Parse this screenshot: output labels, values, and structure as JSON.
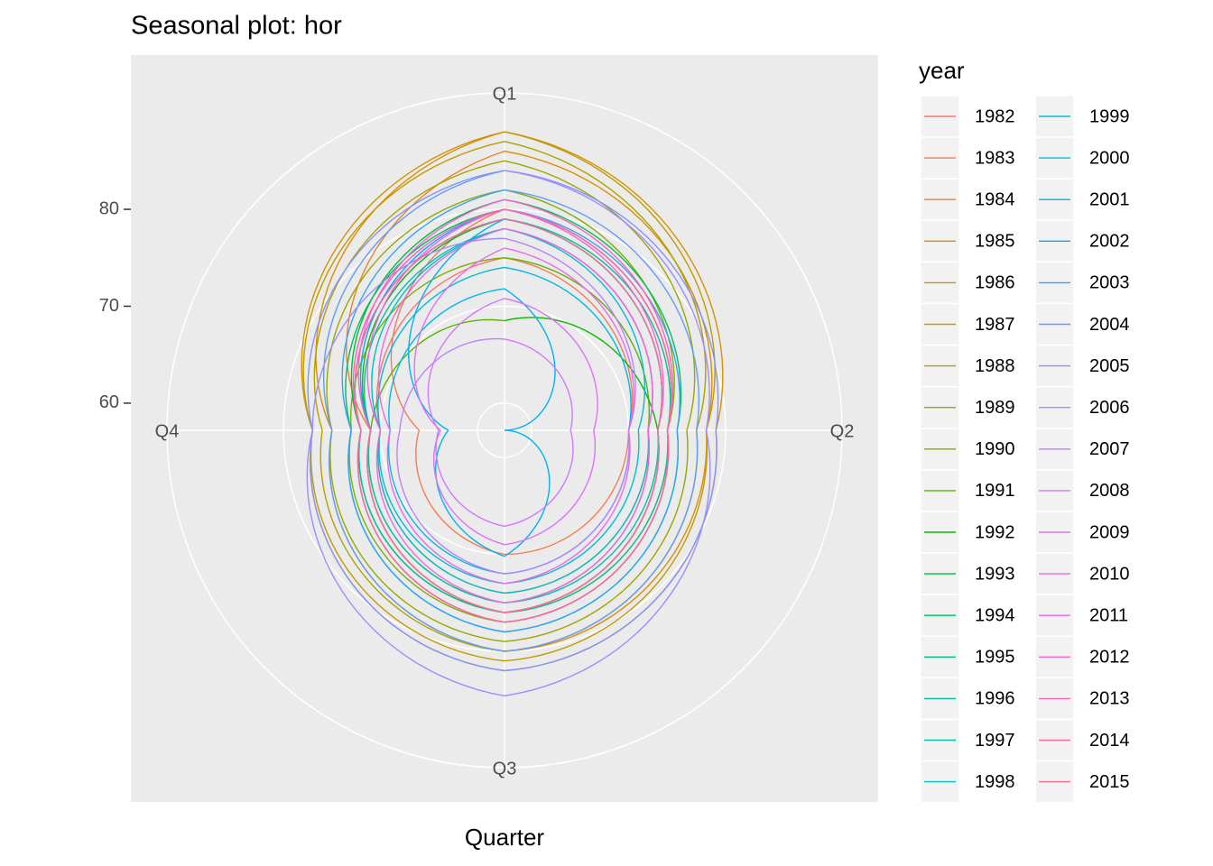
{
  "chart_data": {
    "type": "polar-line",
    "title": "Seasonal plot: hor",
    "x_title": "Quarter",
    "legend_title": "year",
    "categories": [
      "Q1",
      "Q2",
      "Q3",
      "Q4"
    ],
    "ylim": [
      57.2,
      88.1
    ],
    "yticks": [
      60,
      70,
      80
    ],
    "grid": true,
    "series": [
      {
        "name": "1982",
        "color": "#F8766D",
        "values": [
          78,
          72,
          74,
          70
        ]
      },
      {
        "name": "1983",
        "color": "#F27D52",
        "values": [
          75,
          70,
          70,
          66
        ]
      },
      {
        "name": "1984",
        "color": "#E98429",
        "values": [
          80,
          74,
          76,
          71
        ]
      },
      {
        "name": "1985",
        "color": "#DE8C00",
        "values": [
          86,
          78,
          80,
          75
        ]
      },
      {
        "name": "1986",
        "color": "#D09400",
        "values": [
          88,
          79,
          82,
          77
        ]
      },
      {
        "name": "1987",
        "color": "#C09B00",
        "values": [
          88,
          78,
          81,
          77
        ]
      },
      {
        "name": "1988",
        "color": "#AEA200",
        "values": [
          87,
          77,
          80,
          76
        ]
      },
      {
        "name": "1989",
        "color": "#99A800",
        "values": [
          85,
          76,
          79,
          75
        ]
      },
      {
        "name": "1990",
        "color": "#7FAE00",
        "values": [
          82,
          74,
          77,
          73
        ]
      },
      {
        "name": "1991",
        "color": "#5BB300",
        "values": [
          75,
          72,
          75,
          71
        ]
      },
      {
        "name": "1992",
        "color": "#0CB702",
        "values": [
          68.5,
          73,
          76,
          71
        ]
      },
      {
        "name": "1993",
        "color": "#00BA38",
        "values": [
          79,
          73,
          76,
          72
        ]
      },
      {
        "name": "1994",
        "color": "#00BD5C",
        "values": [
          81,
          75,
          78,
          73
        ]
      },
      {
        "name": "1995",
        "color": "#00BF7A",
        "values": [
          80,
          74,
          77,
          72
        ]
      },
      {
        "name": "1996",
        "color": "#00C094",
        "values": [
          79,
          74,
          76,
          72
        ]
      },
      {
        "name": "1997",
        "color": "#00C0AB",
        "values": [
          79,
          73,
          75,
          71
        ]
      },
      {
        "name": "1998",
        "color": "#00BFC1",
        "values": [
          78,
          72,
          74,
          70
        ]
      },
      {
        "name": "1999",
        "color": "#00BCD5",
        "values": [
          78,
          71,
          73,
          70
        ]
      },
      {
        "name": "2000",
        "color": "#00B8E3",
        "values": [
          74,
          70,
          72,
          69
        ]
      },
      {
        "name": "2001",
        "color": "#00B2F3",
        "values": [
          71.8,
          57.2,
          70.2,
          63
        ]
      },
      {
        "name": "2002",
        "color": "#00A9FF",
        "values": [
          79,
          73,
          76,
          71
        ]
      },
      {
        "name": "2003",
        "color": "#35A2FF",
        "values": [
          80,
          75,
          78,
          73
        ]
      },
      {
        "name": "2004",
        "color": "#619CFF",
        "values": [
          82,
          77,
          80,
          75
        ]
      },
      {
        "name": "2005",
        "color": "#8494FF",
        "values": [
          84,
          79,
          82,
          77
        ]
      },
      {
        "name": "2006",
        "color": "#9F8CFF",
        "values": [
          84,
          78,
          84.6,
          77
        ]
      },
      {
        "name": "2007",
        "color": "#B983FF",
        "values": [
          77,
          70,
          72,
          68
        ]
      },
      {
        "name": "2008",
        "color": "#CE79FF",
        "values": [
          66.6,
          64,
          67.1,
          64
        ]
      },
      {
        "name": "2009",
        "color": "#DF70F8",
        "values": [
          70.8,
          66.4,
          69,
          63.8
        ]
      },
      {
        "name": "2010",
        "color": "#EB69EB",
        "values": [
          76,
          70,
          73,
          69
        ]
      },
      {
        "name": "2011",
        "color": "#F564E3",
        "values": [
          78,
          72,
          75,
          70
        ]
      },
      {
        "name": "2012",
        "color": "#FA62D0",
        "values": [
          80,
          73,
          76,
          71
        ]
      },
      {
        "name": "2013",
        "color": "#FD61B8",
        "values": [
          81,
          74,
          77,
          72
        ]
      },
      {
        "name": "2014",
        "color": "#FF67A4",
        "values": [
          80,
          74,
          77,
          72
        ]
      },
      {
        "name": "2015",
        "color": "#FF6C90",
        "values": [
          79,
          73,
          76,
          71
        ]
      }
    ]
  }
}
